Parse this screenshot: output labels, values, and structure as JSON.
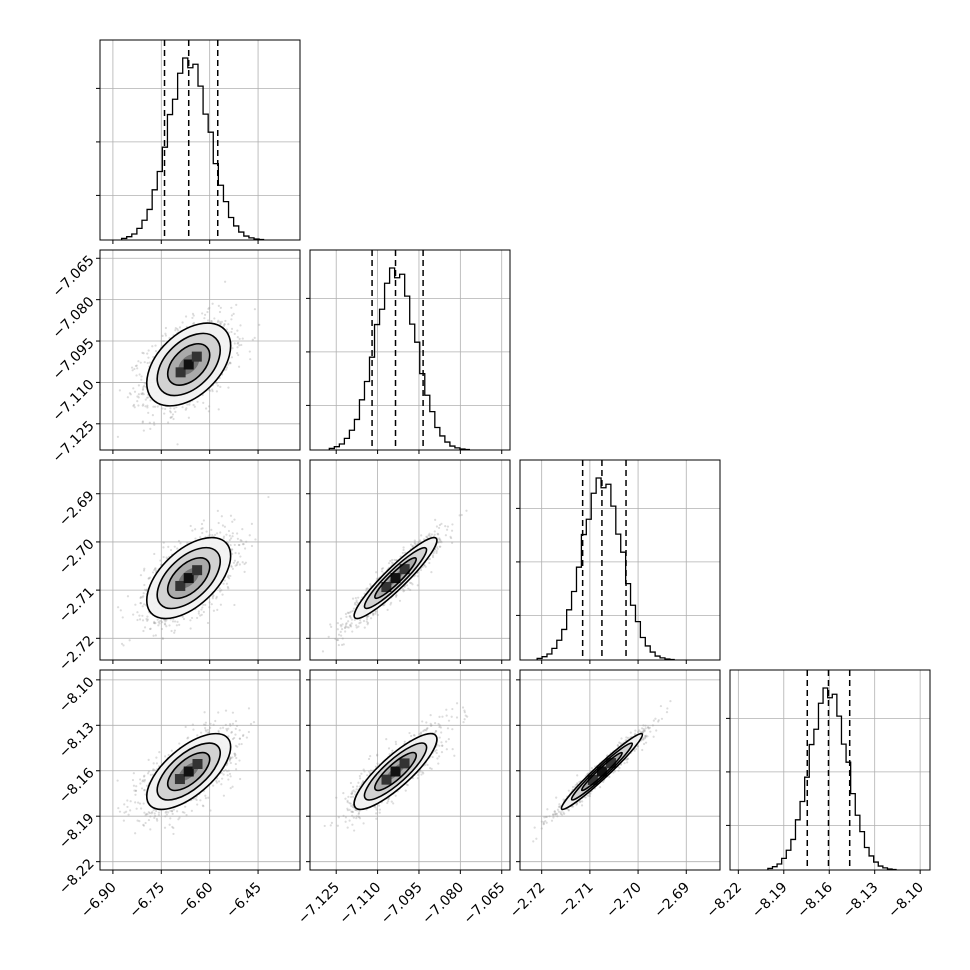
{
  "chart_data": {
    "type": "corner",
    "grid": true,
    "parameters": [
      {
        "range": [
          -6.94,
          -6.32
        ],
        "ticks": [
          -6.9,
          -6.75,
          -6.6,
          -6.45
        ],
        "tick_labels": [
          "−6.90",
          "−6.75",
          "−6.60",
          "−6.45"
        ],
        "mean": -6.665,
        "sd": 0.065,
        "quantiles": [
          -6.74,
          -6.665,
          -6.575
        ],
        "hist_bins": 28
      },
      {
        "range": [
          -7.1345,
          -7.062
        ],
        "ticks": [
          -7.065,
          -7.08,
          -7.095,
          -7.11,
          -7.125
        ],
        "tick_labels": [
          "−7.065",
          "−7.080",
          "−7.095",
          "−7.110",
          "−7.125"
        ],
        "x_tick_labels": [
          "−7.125",
          "−7.110",
          "−7.095",
          "−7.080",
          "−7.065"
        ],
        "mean": -7.1035,
        "sd": 0.0075,
        "quantiles": [
          -7.112,
          -7.1035,
          -7.0935
        ],
        "hist_bins": 28
      },
      {
        "range": [
          -2.7245,
          -2.683
        ],
        "ticks": [
          -2.69,
          -2.7,
          -2.71,
          -2.72
        ],
        "tick_labels": [
          "−2.69",
          "−2.70",
          "−2.71",
          "−2.72"
        ],
        "x_tick_labels": [
          "−2.72",
          "−2.71",
          "−2.70",
          "−2.69"
        ],
        "mean": -2.7075,
        "sd": 0.0042,
        "quantiles": [
          -2.7115,
          -2.7075,
          -2.7025
        ],
        "hist_bins": 28
      },
      {
        "range": [
          -8.2255,
          -8.0935
        ],
        "ticks": [
          -8.1,
          -8.13,
          -8.16,
          -8.19,
          -8.22
        ],
        "tick_labels": [
          "−8.10",
          "−8.13",
          "−8.16",
          "−8.19",
          "−8.22"
        ],
        "x_tick_labels": [
          "−8.22",
          "−8.19",
          "−8.16",
          "−8.13",
          "−8.10"
        ],
        "mean": -8.1605,
        "sd": 0.0125,
        "quantiles": [
          -8.1745,
          -8.1605,
          -8.1465
        ],
        "hist_bins": 28
      }
    ],
    "correlations": [
      [
        1.0,
        0.45,
        0.55,
        0.65
      ],
      [
        0.45,
        1.0,
        0.93,
        0.85
      ],
      [
        0.55,
        0.93,
        1.0,
        0.97
      ],
      [
        0.65,
        0.85,
        0.97,
        1.0
      ]
    ],
    "contour_levels_sigma": [
      0.5,
      1.0,
      1.5,
      2.0
    ]
  }
}
